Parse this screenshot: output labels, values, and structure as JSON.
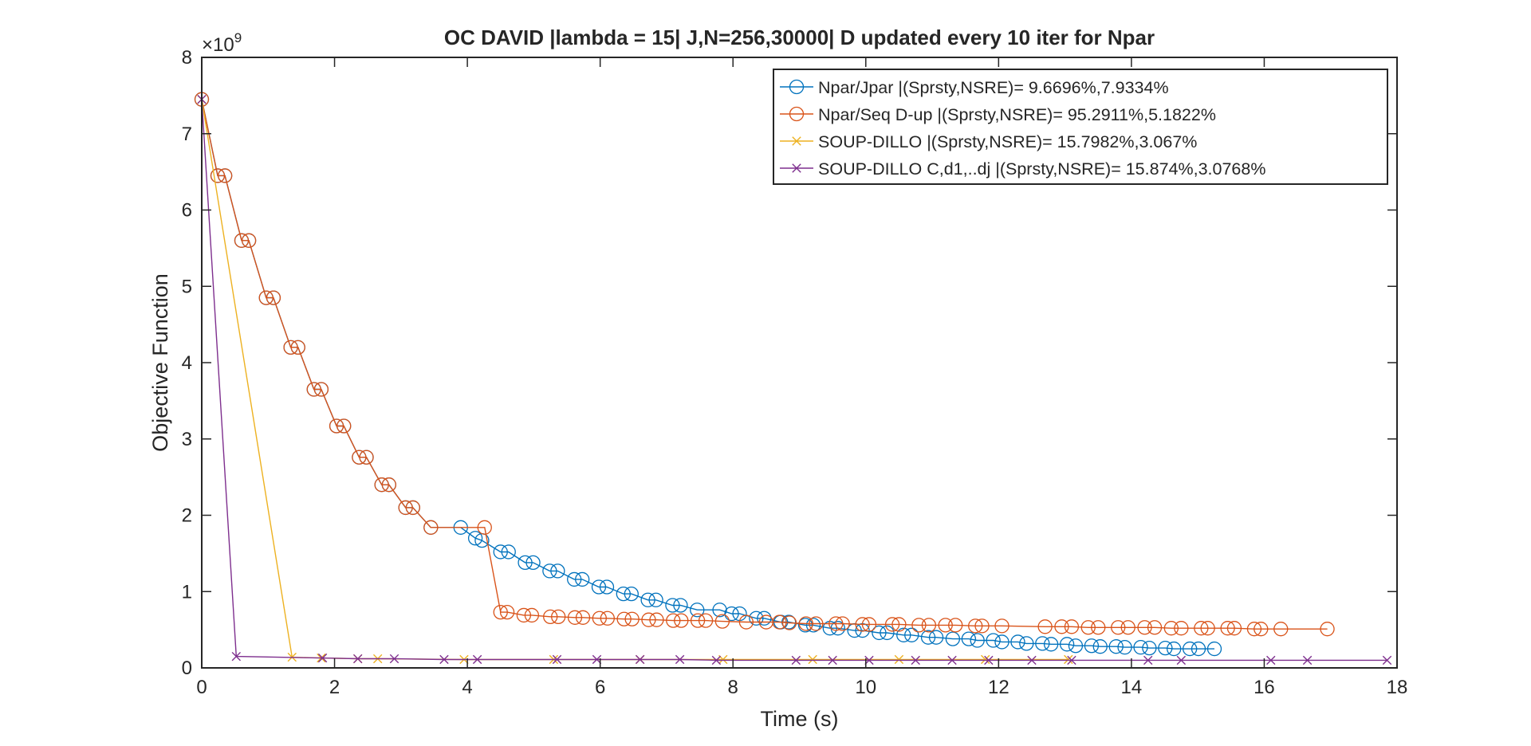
{
  "chart_data": {
    "type": "line",
    "title": "OC DAVID |lambda = 15| J,N=256,30000| D updated every 10 iter for Npar",
    "xlabel": "Time (s)",
    "ylabel": "Objective Function",
    "xlim": [
      0,
      18
    ],
    "ylim": [
      0,
      8
    ],
    "y_multiplier": "×10",
    "y_multiplier_exponent": "9",
    "xticks": [
      0,
      2,
      4,
      6,
      8,
      10,
      12,
      14,
      16,
      18
    ],
    "yticks": [
      0,
      1,
      2,
      3,
      4,
      5,
      6,
      7,
      8
    ],
    "y_unit_scale": 1000000000.0,
    "grid": false,
    "legend_position": "top-right",
    "series": [
      {
        "name": "Npar/Jpar |(Sprsty,NSRE)= 9.6696%,7.9334%",
        "color": "#0072BD",
        "marker": "o",
        "x": [
          0,
          0.24,
          0.35,
          0.6,
          0.71,
          0.97,
          1.08,
          1.34,
          1.45,
          1.69,
          1.8,
          2.03,
          2.14,
          2.37,
          2.48,
          2.71,
          2.82,
          3.07,
          3.18,
          3.45,
          3.9,
          4.12,
          4.22,
          4.5,
          4.62,
          4.87,
          4.99,
          5.24,
          5.36,
          5.61,
          5.73,
          5.98,
          6.1,
          6.35,
          6.47,
          6.72,
          6.84,
          7.09,
          7.21,
          7.46,
          7.8,
          7.98,
          8.1,
          8.35,
          8.47,
          8.72,
          8.84,
          9.09,
          9.21,
          9.46,
          9.58,
          9.83,
          9.95,
          10.2,
          10.32,
          10.57,
          10.69,
          10.94,
          11.06,
          11.31,
          11.55,
          11.68,
          11.92,
          12.05,
          12.29,
          12.42,
          12.66,
          12.79,
          13.03,
          13.16,
          13.4,
          13.53,
          13.77,
          13.9,
          14.14,
          14.27,
          14.51,
          14.64,
          14.88,
          15.01,
          15.25
        ],
        "y": [
          7.45,
          6.45,
          6.45,
          5.6,
          5.6,
          4.85,
          4.85,
          4.2,
          4.2,
          3.65,
          3.65,
          3.17,
          3.17,
          2.76,
          2.76,
          2.4,
          2.4,
          2.1,
          2.1,
          1.84,
          1.84,
          1.7,
          1.67,
          1.52,
          1.52,
          1.38,
          1.38,
          1.27,
          1.27,
          1.16,
          1.16,
          1.06,
          1.06,
          0.97,
          0.97,
          0.89,
          0.89,
          0.82,
          0.82,
          0.76,
          0.76,
          0.71,
          0.71,
          0.65,
          0.65,
          0.6,
          0.6,
          0.56,
          0.56,
          0.52,
          0.52,
          0.49,
          0.49,
          0.46,
          0.46,
          0.43,
          0.43,
          0.4,
          0.4,
          0.38,
          0.38,
          0.36,
          0.36,
          0.34,
          0.34,
          0.32,
          0.32,
          0.31,
          0.31,
          0.29,
          0.29,
          0.28,
          0.28,
          0.27,
          0.27,
          0.26,
          0.26,
          0.25,
          0.25,
          0.25,
          0.25
        ]
      },
      {
        "name": "Npar/Seq D-up |(Sprsty,NSRE)= 95.2911%,5.1822%",
        "color": "#D95319",
        "marker": "o",
        "x": [
          0,
          0.24,
          0.35,
          0.6,
          0.71,
          0.97,
          1.08,
          1.34,
          1.45,
          1.69,
          1.8,
          2.03,
          2.14,
          2.37,
          2.48,
          2.71,
          2.82,
          3.07,
          3.18,
          3.45,
          4.26,
          4.5,
          4.6,
          4.85,
          4.97,
          5.25,
          5.37,
          5.62,
          5.74,
          5.99,
          6.11,
          6.36,
          6.48,
          6.73,
          6.85,
          7.1,
          7.22,
          7.47,
          7.59,
          7.84,
          8.2,
          8.5,
          8.7,
          8.85,
          9.1,
          9.25,
          9.55,
          9.65,
          9.95,
          10.05,
          10.4,
          10.5,
          10.8,
          10.95,
          11.2,
          11.35,
          11.65,
          11.75,
          12.05,
          12.7,
          12.95,
          13.1,
          13.35,
          13.5,
          13.8,
          13.95,
          14.2,
          14.35,
          14.6,
          14.75,
          15.05,
          15.15,
          15.45,
          15.55,
          15.85,
          15.95,
          16.25,
          16.95
        ],
        "y": [
          7.45,
          6.45,
          6.45,
          5.6,
          5.6,
          4.85,
          4.85,
          4.2,
          4.2,
          3.65,
          3.65,
          3.17,
          3.17,
          2.76,
          2.76,
          2.4,
          2.4,
          2.1,
          2.1,
          1.84,
          1.84,
          0.73,
          0.73,
          0.69,
          0.69,
          0.67,
          0.67,
          0.66,
          0.66,
          0.65,
          0.65,
          0.64,
          0.64,
          0.63,
          0.63,
          0.62,
          0.62,
          0.62,
          0.62,
          0.61,
          0.6,
          0.6,
          0.6,
          0.59,
          0.58,
          0.58,
          0.58,
          0.58,
          0.57,
          0.57,
          0.57,
          0.57,
          0.56,
          0.56,
          0.56,
          0.56,
          0.55,
          0.55,
          0.55,
          0.54,
          0.54,
          0.54,
          0.53,
          0.53,
          0.53,
          0.53,
          0.53,
          0.53,
          0.52,
          0.52,
          0.52,
          0.52,
          0.52,
          0.52,
          0.51,
          0.51,
          0.51,
          0.51
        ]
      },
      {
        "name": "SOUP-DILLO |(Sprsty,NSRE)= 15.7982%,3.067%",
        "color": "#EDB120",
        "marker": "x",
        "x": [
          0,
          1.36,
          1.8,
          2.35,
          2.65,
          3.95,
          5.3,
          6.6,
          7.85,
          9.2,
          10.5,
          11.8,
          13.05
        ],
        "y": [
          7.45,
          0.14,
          0.13,
          0.12,
          0.12,
          0.11,
          0.11,
          0.11,
          0.11,
          0.11,
          0.11,
          0.11,
          0.11
        ]
      },
      {
        "name": "SOUP-DILLO C,d1,..dj |(Sprsty,NSRE)= 15.874%,3.0768%",
        "color": "#7E2F8E",
        "marker": "x",
        "x": [
          0,
          0.52,
          1.82,
          2.35,
          2.9,
          3.65,
          4.15,
          5.35,
          5.95,
          6.6,
          7.2,
          7.75,
          8.95,
          9.5,
          10.05,
          10.75,
          11.3,
          11.85,
          12.5,
          13.1,
          14.25,
          14.75,
          16.1,
          16.65,
          17.85
        ],
        "y": [
          7.45,
          0.15,
          0.13,
          0.12,
          0.12,
          0.11,
          0.11,
          0.11,
          0.11,
          0.11,
          0.11,
          0.1,
          0.1,
          0.1,
          0.1,
          0.1,
          0.1,
          0.1,
          0.1,
          0.1,
          0.1,
          0.1,
          0.1,
          0.1,
          0.1
        ]
      }
    ]
  }
}
